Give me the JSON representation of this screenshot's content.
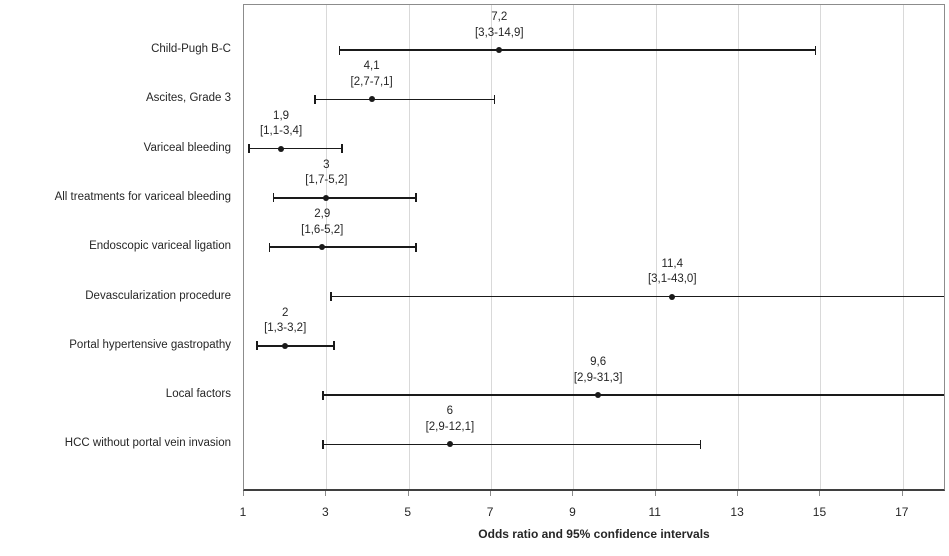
{
  "chart_data": {
    "type": "scatter",
    "subtype": "forest-plot",
    "title": "",
    "xlabel": "Odds ratio and 95% confidence intervals",
    "ylabel": "",
    "xlim": [
      1,
      18
    ],
    "x_ticks": [
      1,
      3,
      5,
      7,
      9,
      11,
      13,
      15,
      17
    ],
    "grid": "vertical-only",
    "legend": "none",
    "marker_style": "filled-black-circle",
    "rows": [
      {
        "label": "Child-Pugh B-C",
        "or": 7.2,
        "ci_low": 3.3,
        "ci_high": 14.9,
        "or_text": "7,2",
        "ci_text": "[3,3-14,9]"
      },
      {
        "label": "Ascites, Grade 3",
        "or": 4.1,
        "ci_low": 2.7,
        "ci_high": 7.1,
        "or_text": "4,1",
        "ci_text": "[2,7-7,1]"
      },
      {
        "label": "Variceal bleeding",
        "or": 1.9,
        "ci_low": 1.1,
        "ci_high": 3.4,
        "or_text": "1,9",
        "ci_text": "[1,1-3,4]"
      },
      {
        "label": "All treatments for variceal bleeding",
        "or": 3,
        "ci_low": 1.7,
        "ci_high": 5.2,
        "or_text": "3",
        "ci_text": "[1,7-5,2]"
      },
      {
        "label": "Endoscopic variceal ligation",
        "or": 2.9,
        "ci_low": 1.6,
        "ci_high": 5.2,
        "or_text": "2,9",
        "ci_text": "[1,6-5,2]"
      },
      {
        "label": "Devascularization procedure",
        "or": 11.4,
        "ci_low": 3.1,
        "ci_high": 43.0,
        "or_text": "11,4",
        "ci_text": "[3,1-43,0]"
      },
      {
        "label": "Portal hypertensive gastropathy",
        "or": 2,
        "ci_low": 1.3,
        "ci_high": 3.2,
        "or_text": "2",
        "ci_text": "[1,3-3,2]"
      },
      {
        "label": "Local factors",
        "or": 9.6,
        "ci_low": 2.9,
        "ci_high": 31.3,
        "or_text": "9,6",
        "ci_text": "[2,9-31,3]"
      },
      {
        "label": "HCC without portal vein invasion",
        "or": 6,
        "ci_low": 2.9,
        "ci_high": 12.1,
        "or_text": "6",
        "ci_text": "[2,9-12,1]"
      }
    ],
    "colors": {
      "line": "#1a1a1a",
      "marker": "#1a1a1a",
      "gridline": "#d9d9d9",
      "plot_border": "#8c8c8c",
      "axis_line": "#3f3f3f",
      "text": "#262626"
    }
  }
}
